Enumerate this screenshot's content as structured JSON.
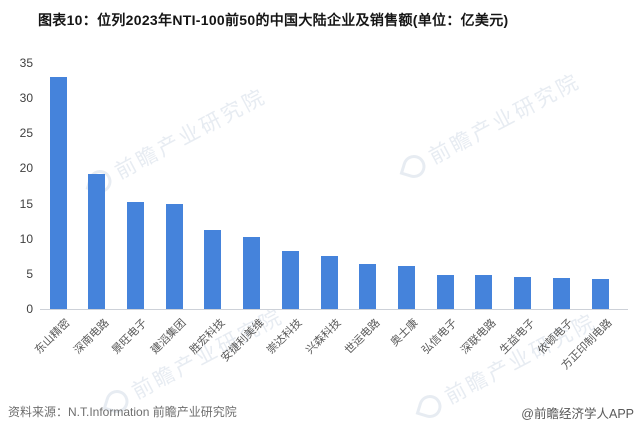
{
  "title": "图表10：位列2023年NTI-100前50的中国大陆企业及销售额(单位：亿美元)",
  "chart_data": {
    "type": "bar",
    "title": "图表10：位列2023年NTI-100前50的中国大陆企业及销售额(单位：亿美元)",
    "categories": [
      "东山精密",
      "深南电路",
      "景旺电子",
      "建滔集团",
      "胜宏科技",
      "安捷利美维",
      "崇达科技",
      "兴森科技",
      "世运电路",
      "奥士康",
      "弘信电子",
      "深联电路",
      "生益电子",
      "依顿电子",
      "方正印制电路"
    ],
    "values": [
      33.0,
      19.2,
      15.3,
      15.0,
      11.2,
      10.2,
      8.2,
      7.5,
      6.4,
      6.1,
      4.9,
      4.9,
      4.6,
      4.4,
      4.3
    ],
    "unit": "亿美元",
    "xlabel": "",
    "ylabel": "",
    "ylim": [
      0,
      35
    ],
    "yticks": [
      0,
      5,
      10,
      15,
      20,
      25,
      30,
      35
    ],
    "bar_color": "#4583DB",
    "grid": false,
    "legend_position": "none"
  },
  "footer": {
    "source": "资料来源：N.T.Information 前瞻产业研究院",
    "credit": "@前瞻经济学人APP"
  },
  "watermark": {
    "text": "前瞻产业研究院",
    "icon": "droplet-logo"
  }
}
